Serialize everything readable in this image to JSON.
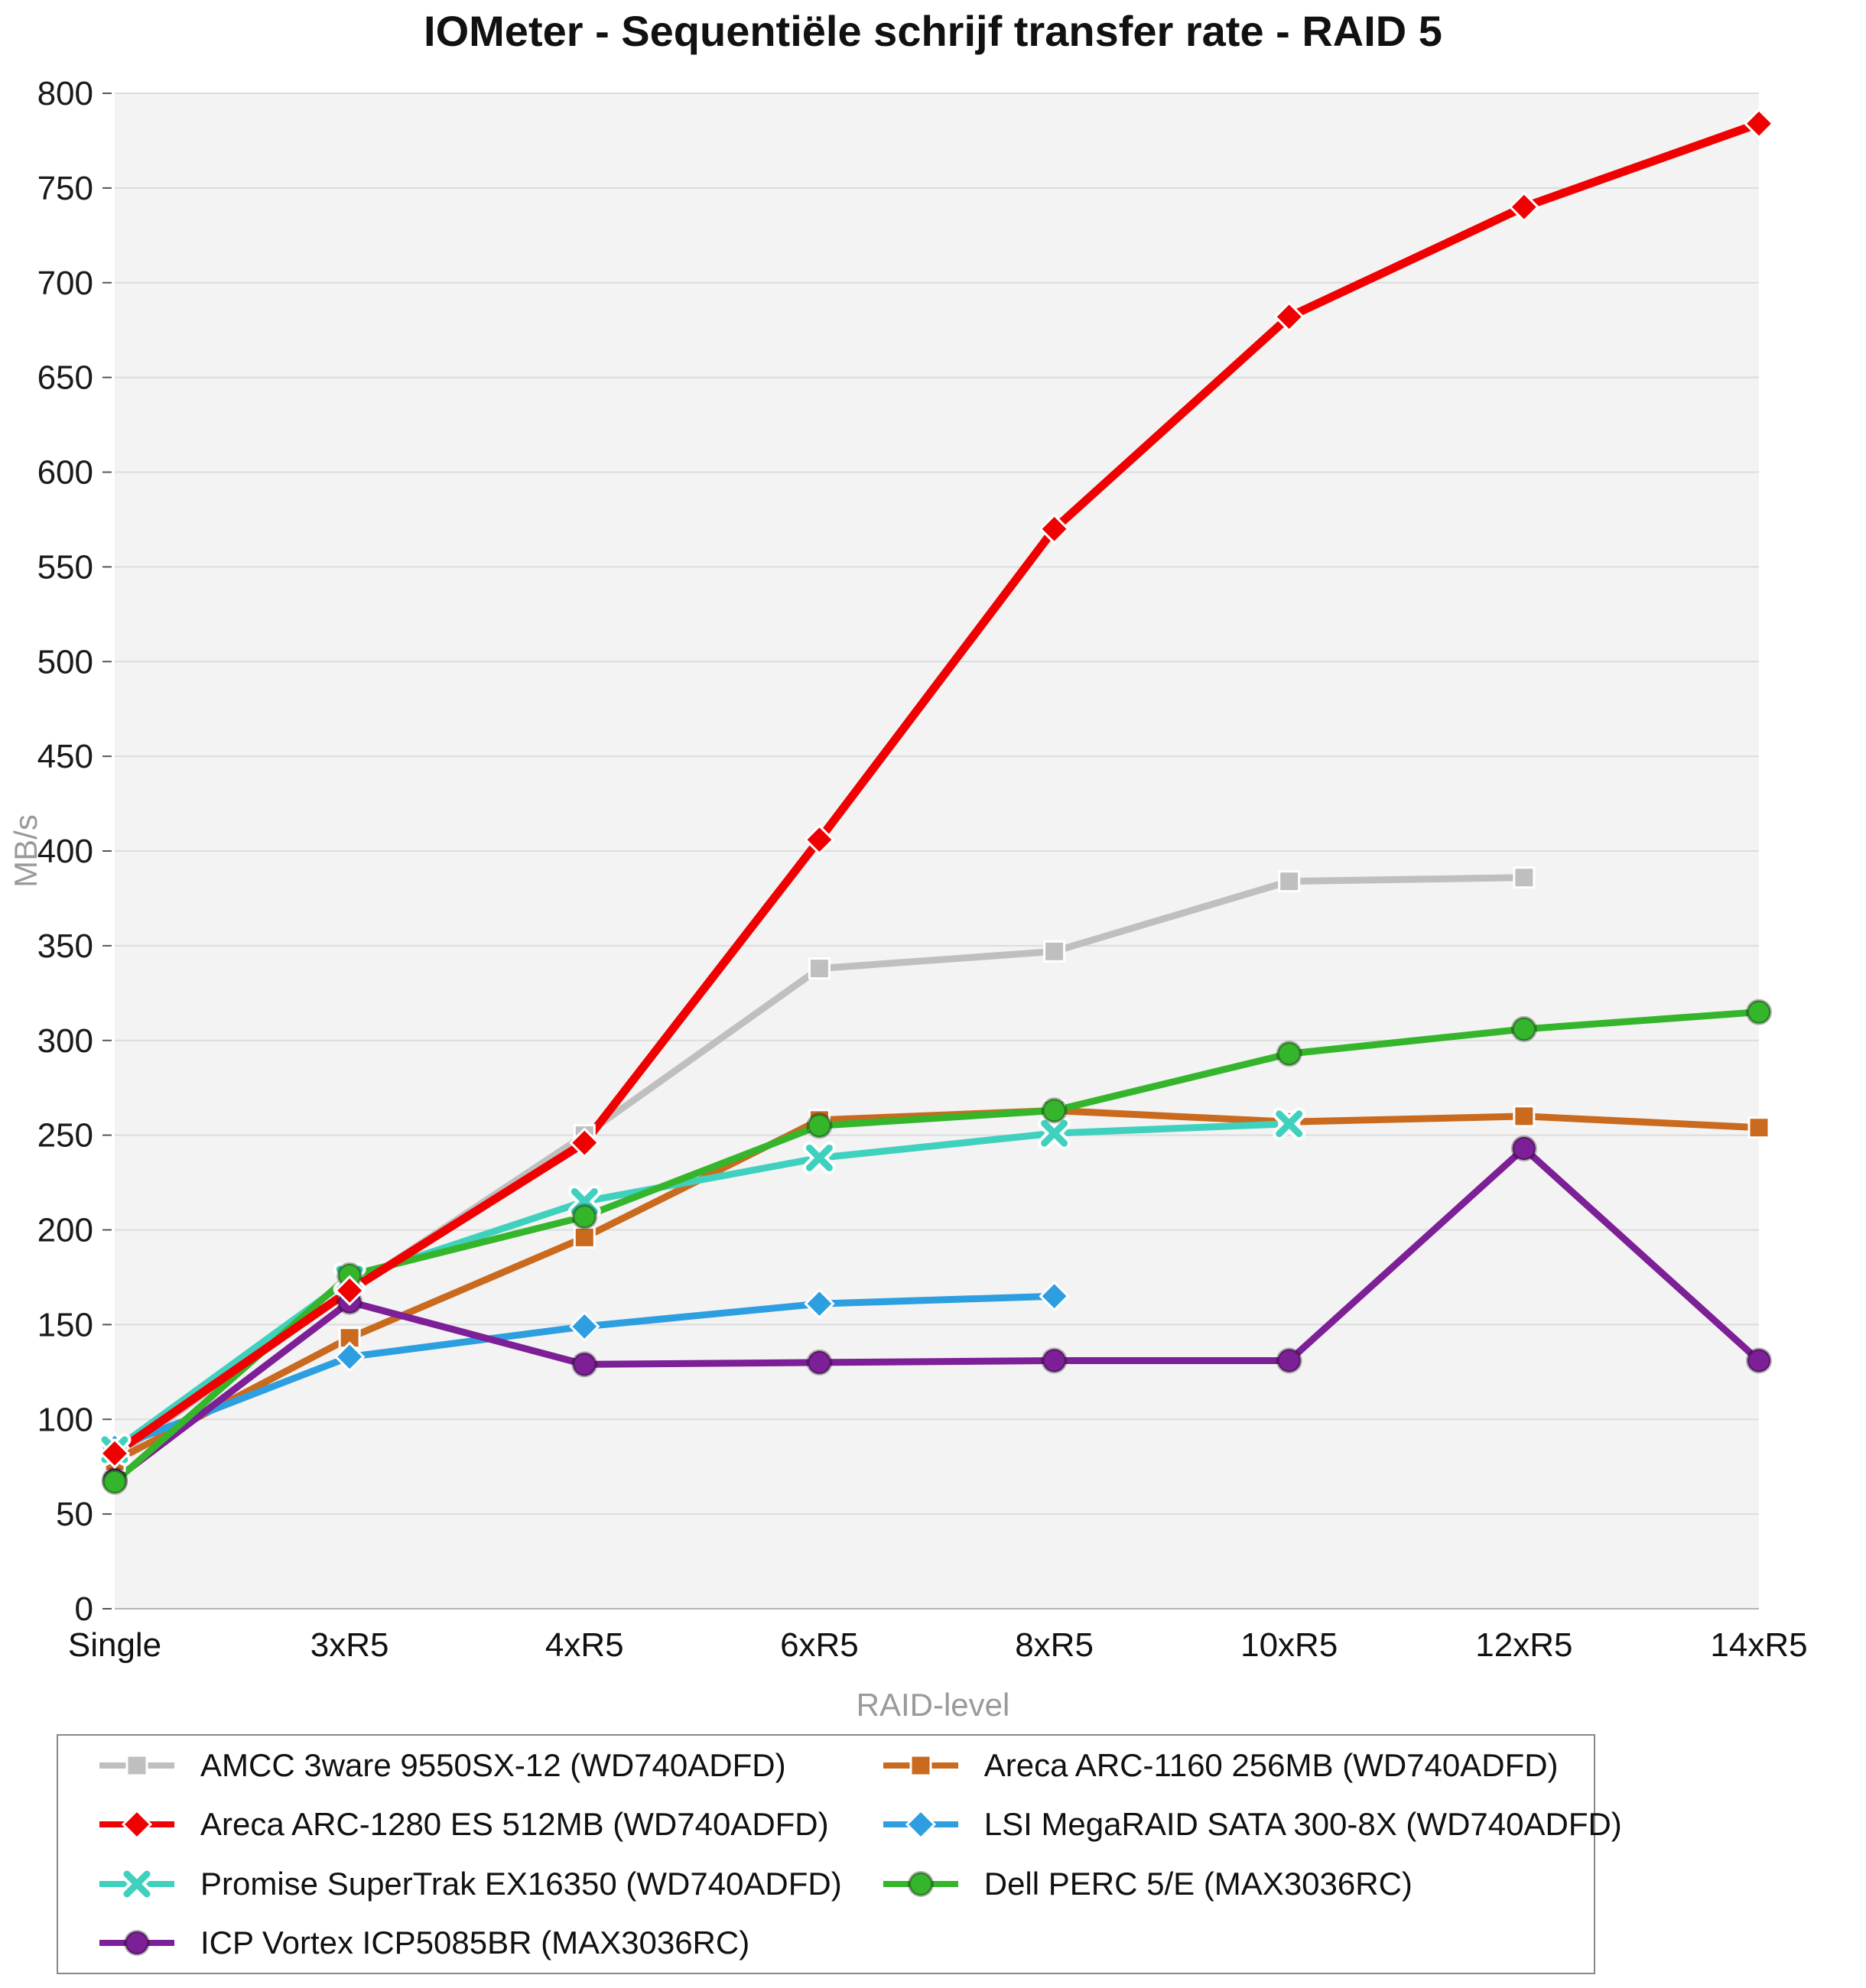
{
  "chart_data": {
    "type": "line",
    "title": "IOMeter - Sequentiële schrijf transfer rate - RAID 5",
    "xlabel": "RAID-level",
    "ylabel": "MB/s",
    "categories": [
      "Single",
      "3xR5",
      "4xR5",
      "6xR5",
      "8xR5",
      "10xR5",
      "12xR5",
      "14xR5"
    ],
    "ylim": [
      0,
      800
    ],
    "y_ticks": [
      0,
      50,
      100,
      150,
      200,
      250,
      300,
      350,
      400,
      450,
      500,
      550,
      600,
      650,
      700,
      750,
      800
    ],
    "grid": true,
    "legend_position": "bottom",
    "plot_bg": "#f3f3f3",
    "grid_color": "#dcdcdc",
    "series": [
      {
        "name": "AMCC 3ware 9550SX-12 (WD740ADFD)",
        "color": "#bfbfbf",
        "marker": "square",
        "values": [
          80,
          168,
          250,
          338,
          347,
          384,
          386,
          null
        ]
      },
      {
        "name": "Areca ARC-1160 256MB (WD740ADFD)",
        "color": "#c96a1e",
        "marker": "square",
        "values": [
          78,
          143,
          196,
          258,
          263,
          257,
          260,
          254
        ]
      },
      {
        "name": "Areca ARC-1280 ES 512MB (WD740ADFD)",
        "color": "#f00000",
        "marker": "diamond",
        "values": [
          82,
          168,
          246,
          406,
          570,
          682,
          740,
          784
        ]
      },
      {
        "name": "LSI MegaRAID SATA 300-8X (WD740ADFD)",
        "color": "#2d9fe0",
        "marker": "diamond",
        "values": [
          85,
          133,
          149,
          161,
          165,
          null,
          null,
          null
        ]
      },
      {
        "name": "Promise SuperTrak EX16350 (WD740ADFD)",
        "color": "#3fd1be",
        "marker": "cross",
        "values": [
          84,
          174,
          215,
          238,
          251,
          256,
          null,
          null
        ]
      },
      {
        "name": "Dell PERC 5/E (MAX3036RC)",
        "color": "#35b52c",
        "marker": "circle",
        "values": [
          67,
          176,
          207,
          255,
          263,
          293,
          306,
          315
        ]
      },
      {
        "name": "ICP Vortex ICP5085BR (MAX3036RC)",
        "color": "#7d1f96",
        "marker": "circle",
        "values": [
          68,
          162,
          129,
          130,
          131,
          131,
          243,
          131
        ]
      }
    ],
    "legend_order": [
      [
        0,
        1
      ],
      [
        2,
        3
      ],
      [
        4,
        5
      ],
      [
        6
      ]
    ],
    "draw_order": [
      0,
      1,
      3,
      4,
      6,
      5,
      2
    ]
  }
}
